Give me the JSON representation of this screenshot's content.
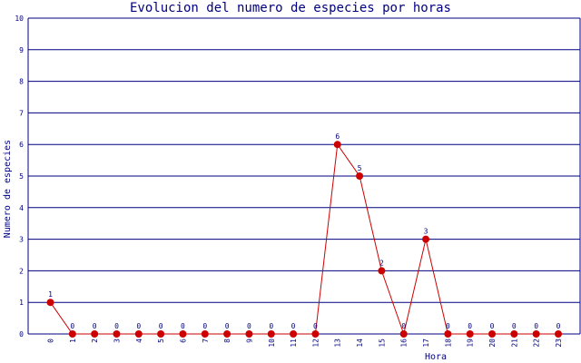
{
  "chart_data": {
    "type": "line",
    "title": "Evolucion del numero de especies por horas",
    "xlabel": "Hora",
    "ylabel": "Numero de especies",
    "x": [
      "0",
      "1",
      "2",
      "3",
      "4",
      "5",
      "6",
      "7",
      "8",
      "9",
      "10",
      "11",
      "12",
      "13",
      "14",
      "15",
      "16",
      "17",
      "18",
      "19",
      "20",
      "21",
      "22",
      "23"
    ],
    "values": [
      1,
      0,
      0,
      0,
      0,
      0,
      0,
      0,
      0,
      0,
      0,
      0,
      0,
      6,
      5,
      2,
      0,
      3,
      0,
      0,
      0,
      0,
      0,
      0
    ],
    "ylim": [
      0,
      10
    ],
    "yticks": [
      "0",
      "1",
      "2",
      "3",
      "4",
      "5",
      "6",
      "7",
      "8",
      "9",
      "10"
    ],
    "grid": "horizontal",
    "colors": {
      "line": "#cc0000",
      "marker": "#cc0000",
      "grid": "#000080",
      "text": "#000080"
    }
  }
}
